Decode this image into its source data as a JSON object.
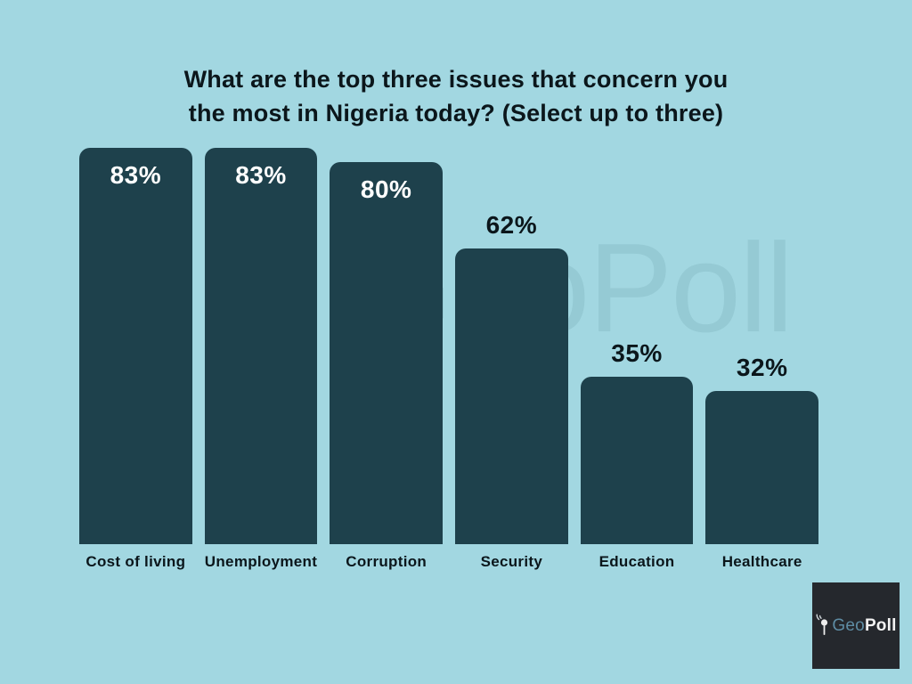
{
  "title": {
    "line1": "What are the top three issues that concern you",
    "line2": "the most in Nigeria today? (Select up to three)"
  },
  "chart_data": {
    "type": "bar",
    "title": "What are the top three issues that concern you the most in Nigeria today? (Select up to three)",
    "categories": [
      "Cost of living",
      "Unemployment",
      "Corruption",
      "Security",
      "Education",
      "Healthcare"
    ],
    "values": [
      83,
      83,
      80,
      62,
      35,
      32
    ],
    "value_labels": [
      "83%",
      "83%",
      "80%",
      "62%",
      "35%",
      "32%"
    ],
    "label_inside": [
      true,
      true,
      true,
      false,
      false,
      false
    ],
    "unit": "%",
    "ylim": [
      0,
      100
    ],
    "grid": false,
    "legend": false,
    "orientation": "vertical",
    "bar_color": "#1E414C",
    "inside_label_color": "#FFFFFF",
    "outside_label_color": "#0B161B"
  },
  "watermark": {
    "text": "GeoPoll"
  },
  "logo": {
    "icon": "antenna-signal-icon",
    "geo": "Geo",
    "poll": "Poll",
    "background": "#25282D",
    "geo_color": "#5E8CA4",
    "poll_color": "#F2F2F2"
  },
  "colors": {
    "background": "#A2D7E1",
    "bar": "#1E414C",
    "title_text": "#0B161B"
  }
}
